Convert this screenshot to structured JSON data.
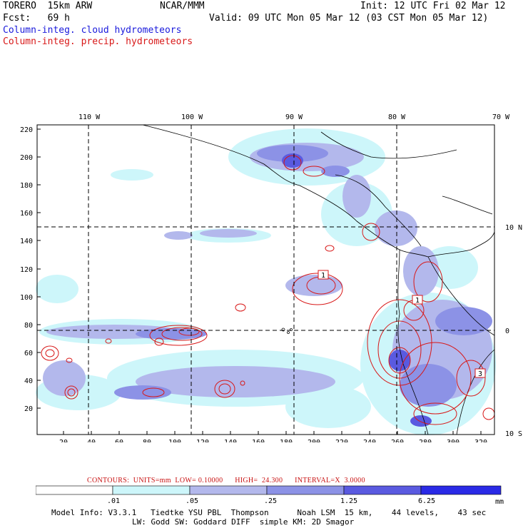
{
  "header": {
    "model": "TORERO  15km ARW",
    "org": "NCAR/MMM",
    "init": "Init: 12 UTC Fri 02 Mar 12",
    "fcst": "Fcst:   69 h",
    "valid": "Valid: 09 UTC Mon 05 Mar 12 (03 CST Mon 05 Mar 12)",
    "field1": "Column-integ. cloud hydrometeors",
    "field2": "Column-integ. precip. hydrometeors",
    "field1_color": "#1a1adc",
    "field2_color": "#d81818"
  },
  "map": {
    "top_lon_labels": [
      "110 W",
      "100 W",
      "90 W",
      "80 W",
      "70 W"
    ],
    "right_lat_labels": [
      "10 N",
      "0",
      "10 S"
    ],
    "left_y_ticks": [
      "220",
      "200",
      "180",
      "160",
      "140",
      "120",
      "100",
      "80",
      "60",
      "40",
      "20"
    ],
    "bottom_x_ticks": [
      "20",
      "40",
      "60",
      "80",
      "100",
      "120",
      "140",
      "160",
      "180",
      "200",
      "220",
      "240",
      "260",
      "280",
      "300",
      "320"
    ],
    "box_labels": [
      "1",
      "1",
      "3"
    ]
  },
  "contours_text": "CONTOURS:  UNITS=mm  LOW= 0.10000      HIGH=  24.300      INTERVAL=X  3.0000",
  "colorbar": {
    "labels": [
      ".01",
      ".05",
      ".25",
      "1.25",
      "6.25"
    ],
    "unit": "mm",
    "colors": [
      "#ffffff",
      "#cdf6fa",
      "#b3b8ec",
      "#8c92e6",
      "#5a5ae0",
      "#2a2ae6"
    ]
  },
  "info": {
    "line1": "Model Info: V3.3.1   Tiedtke YSU PBL  Thompson      Noah LSM  15 km,    44 levels,    43 sec",
    "line2": "LW: Godd SW: Goddard DIFF  simple KM: 2D Smagor"
  }
}
